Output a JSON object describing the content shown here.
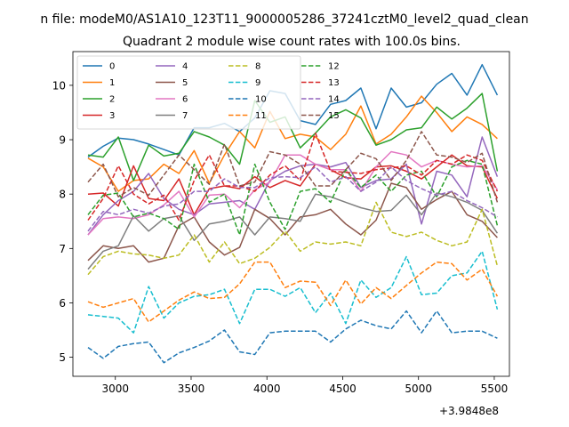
{
  "chart_data": {
    "type": "line",
    "title": "Quadrant 2 module wise count rates with 100.0s bins.",
    "suptitle": "n file: modeM0/AS1A10_123T11_9000005286_37241cztM0_level2_quad_clean",
    "xlabel": "",
    "ylabel": "",
    "x_offset_label": "+3.9848e8",
    "xlim": [
      2720,
      5600
    ],
    "ylim": [
      4.65,
      10.62
    ],
    "xticks": [
      3000,
      3500,
      4000,
      4500,
      5000,
      5500
    ],
    "xtick_labels": [
      "3000",
      "3500",
      "4000",
      "4500",
      "5000",
      "5500"
    ],
    "yticks": [
      5,
      6,
      7,
      8,
      9,
      10
    ],
    "ytick_labels": [
      "5",
      "6",
      "7",
      "8",
      "9",
      "10"
    ],
    "grid": false,
    "legend": {
      "position": "top-left",
      "columns": 4
    },
    "x": [
      2820,
      2920,
      3020,
      3120,
      3220,
      3320,
      3420,
      3520,
      3620,
      3720,
      3820,
      3920,
      4020,
      4120,
      4220,
      4320,
      4420,
      4520,
      4620,
      4720,
      4820,
      4920,
      5020,
      5120,
      5220,
      5320,
      5420,
      5520
    ],
    "series": [
      {
        "name": "0",
        "color": "#1f77b4",
        "dash": "solid",
        "values": [
          8.68,
          8.88,
          9.03,
          9.0,
          8.92,
          8.82,
          8.72,
          9.22,
          9.22,
          9.3,
          9.15,
          9.4,
          9.9,
          9.85,
          9.35,
          9.28,
          9.65,
          9.72,
          9.95,
          9.2,
          9.95,
          9.6,
          9.68,
          10.02,
          10.22,
          9.82,
          10.38,
          9.82
        ]
      },
      {
        "name": "1",
        "color": "#ff7f0e",
        "dash": "solid",
        "values": [
          8.66,
          8.5,
          8.05,
          8.25,
          8.28,
          8.55,
          8.38,
          8.8,
          8.2,
          8.72,
          9.15,
          8.85,
          9.52,
          9.02,
          9.1,
          9.05,
          8.82,
          9.1,
          9.62,
          8.92,
          9.1,
          9.42,
          9.8,
          9.5,
          9.15,
          9.42,
          9.28,
          9.02
        ]
      },
      {
        "name": "2",
        "color": "#2ca02c",
        "dash": "solid",
        "values": [
          8.72,
          8.68,
          9.05,
          8.25,
          8.9,
          8.7,
          8.75,
          9.15,
          9.05,
          8.9,
          8.55,
          9.72,
          9.32,
          9.42,
          8.85,
          9.12,
          9.42,
          9.55,
          9.4,
          8.9,
          9.0,
          9.18,
          9.22,
          9.6,
          9.38,
          9.58,
          9.85,
          8.42
        ]
      },
      {
        "name": "3",
        "color": "#d62728",
        "dash": "solid",
        "values": [
          8.0,
          8.02,
          7.78,
          8.52,
          7.92,
          7.88,
          8.28,
          7.62,
          8.1,
          8.15,
          8.1,
          8.32,
          8.12,
          8.25,
          8.15,
          8.55,
          8.45,
          8.3,
          8.28,
          8.5,
          8.52,
          8.42,
          8.28,
          8.5,
          8.72,
          8.52,
          8.5,
          7.92
        ]
      },
      {
        "name": "4",
        "color": "#9467bd",
        "dash": "solid",
        "values": [
          7.25,
          7.62,
          7.88,
          8.05,
          8.38,
          7.92,
          7.72,
          7.62,
          7.82,
          7.85,
          7.88,
          7.72,
          8.25,
          8.42,
          8.52,
          8.55,
          8.5,
          8.58,
          8.12,
          8.25,
          8.28,
          8.55,
          7.45,
          8.42,
          8.35,
          7.95,
          9.05,
          8.32
        ]
      },
      {
        "name": "5",
        "color": "#8c564b",
        "dash": "solid",
        "values": [
          6.78,
          7.05,
          7.0,
          7.05,
          6.75,
          6.82,
          7.42,
          7.58,
          7.12,
          6.88,
          7.02,
          7.72,
          7.55,
          7.25,
          7.58,
          7.62,
          7.72,
          7.45,
          7.25,
          7.52,
          8.2,
          8.12,
          7.72,
          7.9,
          8.05,
          7.62,
          7.5,
          7.2
        ]
      },
      {
        "name": "6",
        "color": "#e377c2",
        "dash": "solid",
        "values": [
          7.25,
          7.55,
          7.58,
          7.55,
          7.62,
          7.8,
          8.05,
          7.58,
          7.98,
          8.0,
          7.75,
          8.08,
          8.22,
          8.72,
          8.72,
          8.55,
          8.45,
          8.45,
          8.05,
          8.5,
          8.78,
          8.72,
          8.5,
          8.62,
          8.55,
          8.5,
          8.52,
          8.08
        ]
      },
      {
        "name": "7",
        "color": "#7f7f7f",
        "dash": "solid",
        "values": [
          6.62,
          6.95,
          7.05,
          7.6,
          7.32,
          7.55,
          7.6,
          7.15,
          7.45,
          7.5,
          7.58,
          7.25,
          7.58,
          7.55,
          7.5,
          8.0,
          7.95,
          7.85,
          7.75,
          7.68,
          7.7,
          7.98,
          7.62,
          8.02,
          7.95,
          7.85,
          7.7,
          7.28
        ]
      },
      {
        "name": "8",
        "color": "#bcbd22",
        "dash": "dashed",
        "values": [
          6.52,
          6.85,
          6.95,
          6.9,
          6.88,
          6.82,
          6.88,
          7.25,
          6.75,
          7.12,
          6.72,
          6.82,
          7.02,
          7.32,
          6.95,
          7.12,
          7.08,
          7.12,
          7.05,
          7.85,
          7.3,
          7.22,
          7.3,
          7.15,
          7.05,
          7.12,
          7.72,
          6.68
        ]
      },
      {
        "name": "9",
        "color": "#17becf",
        "dash": "dashed",
        "values": [
          5.78,
          5.75,
          5.72,
          5.45,
          6.3,
          5.72,
          6.0,
          6.12,
          6.15,
          6.25,
          5.62,
          6.25,
          6.25,
          6.12,
          6.28,
          5.82,
          6.18,
          5.62,
          6.42,
          6.1,
          6.28,
          6.85,
          6.15,
          6.18,
          6.5,
          6.55,
          6.95,
          5.88
        ]
      },
      {
        "name": "10",
        "color": "#1f77b4",
        "dash": "dashed",
        "values": [
          5.18,
          4.98,
          5.2,
          5.25,
          5.28,
          4.9,
          5.08,
          5.18,
          5.3,
          5.5,
          5.1,
          5.05,
          5.45,
          5.48,
          5.48,
          5.48,
          5.28,
          5.52,
          5.68,
          5.58,
          5.52,
          5.85,
          5.45,
          5.85,
          5.45,
          5.48,
          5.48,
          5.35
        ]
      },
      {
        "name": "11",
        "color": "#ff7f0e",
        "dash": "dashed",
        "values": [
          6.02,
          5.92,
          6.0,
          6.08,
          5.65,
          5.85,
          6.05,
          6.2,
          6.08,
          6.1,
          6.35,
          6.75,
          6.75,
          6.28,
          6.4,
          6.38,
          5.95,
          6.42,
          5.98,
          6.28,
          6.08,
          6.32,
          6.55,
          6.75,
          6.72,
          6.42,
          6.62,
          6.12
        ]
      },
      {
        "name": "12",
        "color": "#2ca02c",
        "dash": "dashed",
        "values": [
          7.62,
          7.98,
          8.02,
          7.58,
          7.65,
          7.55,
          7.35,
          8.55,
          7.85,
          8.0,
          7.25,
          8.55,
          7.85,
          7.35,
          8.05,
          8.1,
          7.85,
          8.45,
          8.12,
          8.35,
          8.05,
          8.35,
          8.42,
          7.95,
          8.5,
          8.62,
          8.55,
          7.42
        ]
      },
      {
        "name": "13",
        "color": "#d62728",
        "dash": "dashed",
        "values": [
          7.52,
          7.92,
          8.52,
          8.0,
          7.82,
          7.98,
          7.52,
          8.25,
          8.72,
          8.15,
          8.15,
          8.05,
          8.35,
          8.52,
          8.25,
          9.12,
          8.42,
          8.4,
          8.38,
          8.45,
          8.48,
          8.52,
          8.35,
          8.62,
          8.55,
          8.72,
          8.62,
          8.05
        ]
      },
      {
        "name": "14",
        "color": "#9467bd",
        "dash": "dashed",
        "values": [
          7.32,
          7.68,
          7.62,
          7.72,
          7.65,
          7.78,
          7.82,
          8.05,
          8.05,
          8.28,
          8.12,
          8.12,
          8.3,
          8.32,
          8.3,
          8.5,
          8.22,
          8.32,
          8.05,
          8.22,
          8.5,
          8.25,
          8.1,
          7.98,
          8.05,
          7.88,
          7.75,
          7.58
        ]
      },
      {
        "name": "15",
        "color": "#8c564b",
        "dash": "dashed",
        "values": [
          8.22,
          8.55,
          7.95,
          8.12,
          7.98,
          8.35,
          8.72,
          8.45,
          8.18,
          8.92,
          8.15,
          8.22,
          8.78,
          8.72,
          8.55,
          8.15,
          8.15,
          8.45,
          8.75,
          8.65,
          8.25,
          8.62,
          9.15,
          8.72,
          8.68,
          8.58,
          8.75,
          7.85
        ]
      }
    ]
  }
}
